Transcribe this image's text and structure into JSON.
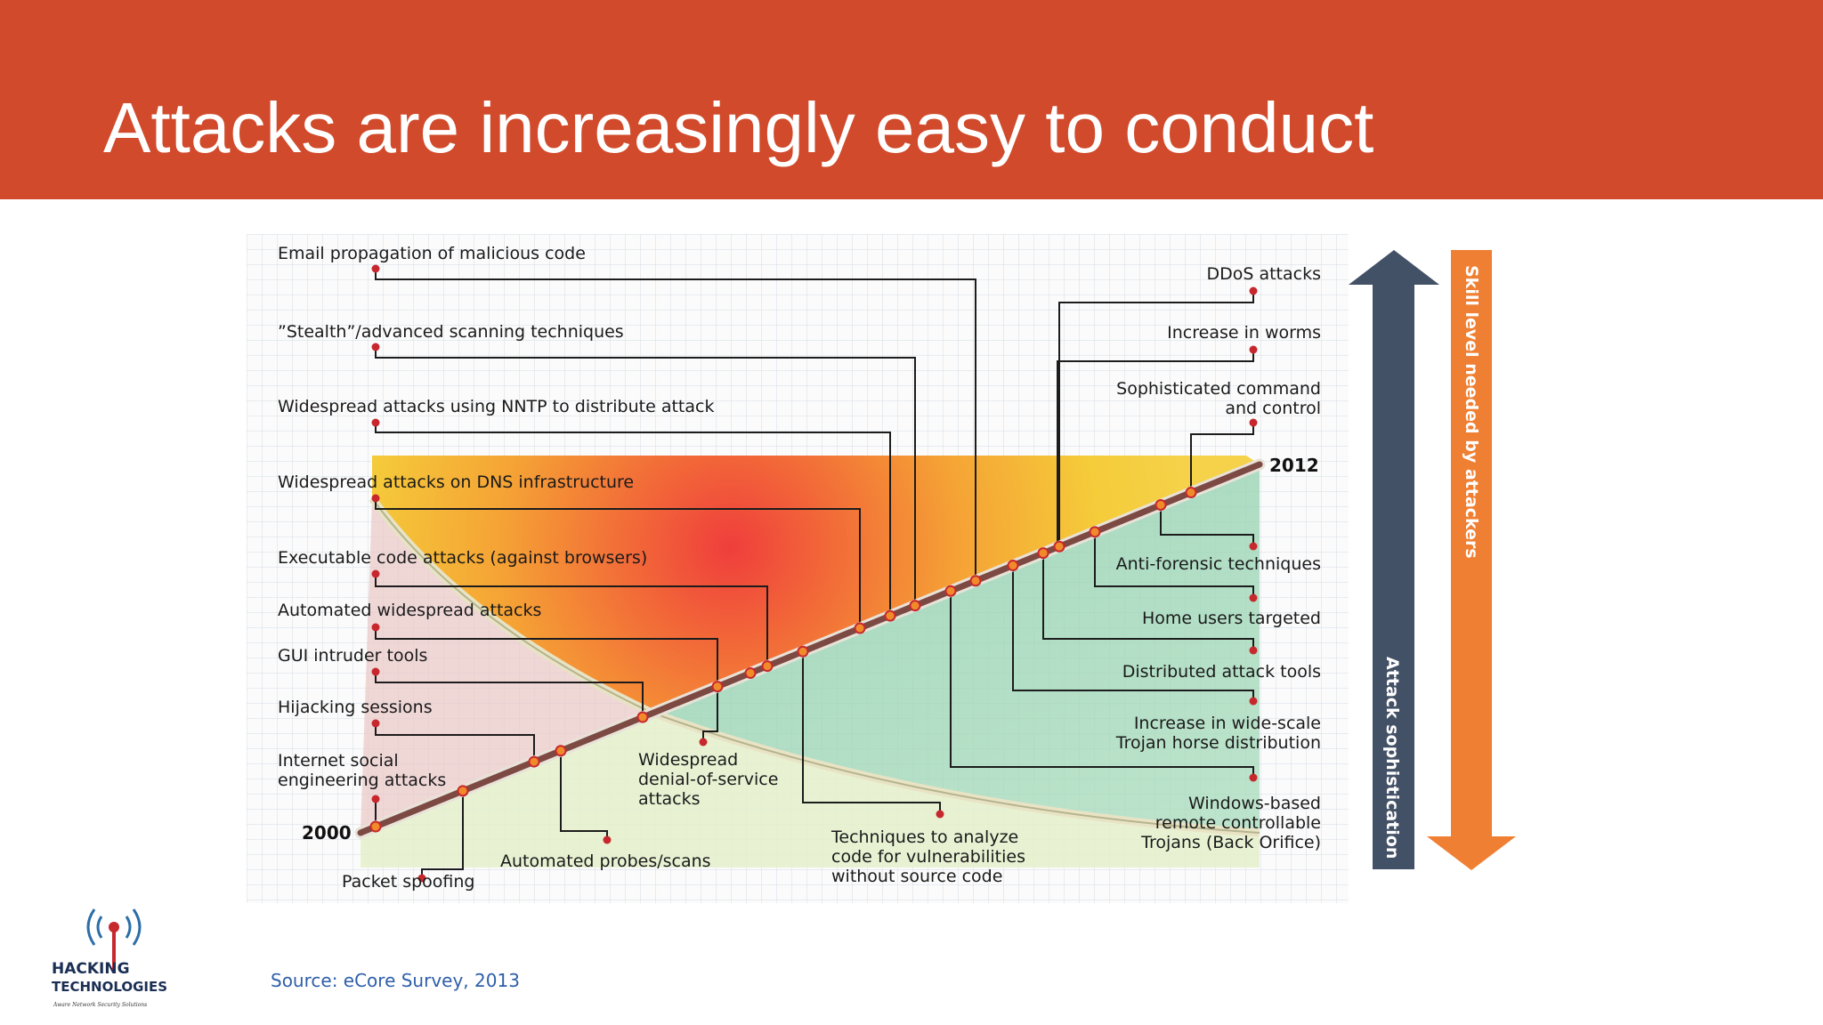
{
  "slide": {
    "title": "Attacks are increasingly easy to conduct",
    "source": "Source: eCore Survey, 2013"
  },
  "logo": {
    "line1": "HACKING",
    "line2": "TECHNOLOGIES",
    "tagline": "Aware Network Security Solutions"
  },
  "colors": {
    "header": "#d14a2b",
    "grid": "#d7dee6",
    "attack_arrow": "#435166",
    "skill_arrow": "#ef7f32",
    "timeline": "#7c4a43",
    "marker": "#c7282e"
  },
  "diagram": {
    "year_start": "2000",
    "year_end": "2012",
    "axis_attack": "Attack sophistication",
    "axis_skill": "Skill level needed by attackers",
    "left_labels": [
      {
        "key": "email",
        "lines": [
          "Email propagation of malicious code"
        ]
      },
      {
        "key": "stealth",
        "lines": [
          "”Stealth”/advanced scanning techniques"
        ]
      },
      {
        "key": "nntp",
        "lines": [
          "Widespread attacks using NNTP to distribute attack"
        ]
      },
      {
        "key": "dns",
        "lines": [
          "Widespread attacks on DNS infrastructure"
        ]
      },
      {
        "key": "exec",
        "lines": [
          "Executable code attacks (against browsers)"
        ]
      },
      {
        "key": "auto",
        "lines": [
          "Automated widespread attacks"
        ]
      },
      {
        "key": "gui",
        "lines": [
          "GUI intruder tools"
        ]
      },
      {
        "key": "hijack",
        "lines": [
          "Hijacking sessions"
        ]
      },
      {
        "key": "social",
        "lines": [
          "Internet social",
          "engineering attacks"
        ]
      }
    ],
    "right_labels": [
      {
        "key": "ddos",
        "lines": [
          "DDoS attacks"
        ]
      },
      {
        "key": "worms",
        "lines": [
          "Increase in worms"
        ]
      },
      {
        "key": "c2",
        "lines": [
          "Sophisticated command",
          "and control"
        ]
      },
      {
        "key": "forensic",
        "lines": [
          "Anti-forensic techniques"
        ]
      },
      {
        "key": "home",
        "lines": [
          "Home users targeted"
        ]
      },
      {
        "key": "dist",
        "lines": [
          "Distributed attack tools"
        ]
      },
      {
        "key": "trojan",
        "lines": [
          "Increase in wide-scale",
          "Trojan horse distribution"
        ]
      },
      {
        "key": "windows",
        "lines": [
          "Windows-based",
          "remote controllable",
          "Trojans (Back Orifice)"
        ]
      }
    ],
    "bottom_labels": [
      {
        "key": "spoof",
        "lines": [
          "Packet spoofing"
        ]
      },
      {
        "key": "probes",
        "lines": [
          "Automated probes/scans"
        ]
      },
      {
        "key": "dos",
        "lines": [
          "Widespread",
          "denial-of-service",
          "attacks"
        ]
      },
      {
        "key": "techniques",
        "lines": [
          "Techniques to analyze",
          "code for vulnerabilities",
          "without source code"
        ]
      }
    ]
  }
}
